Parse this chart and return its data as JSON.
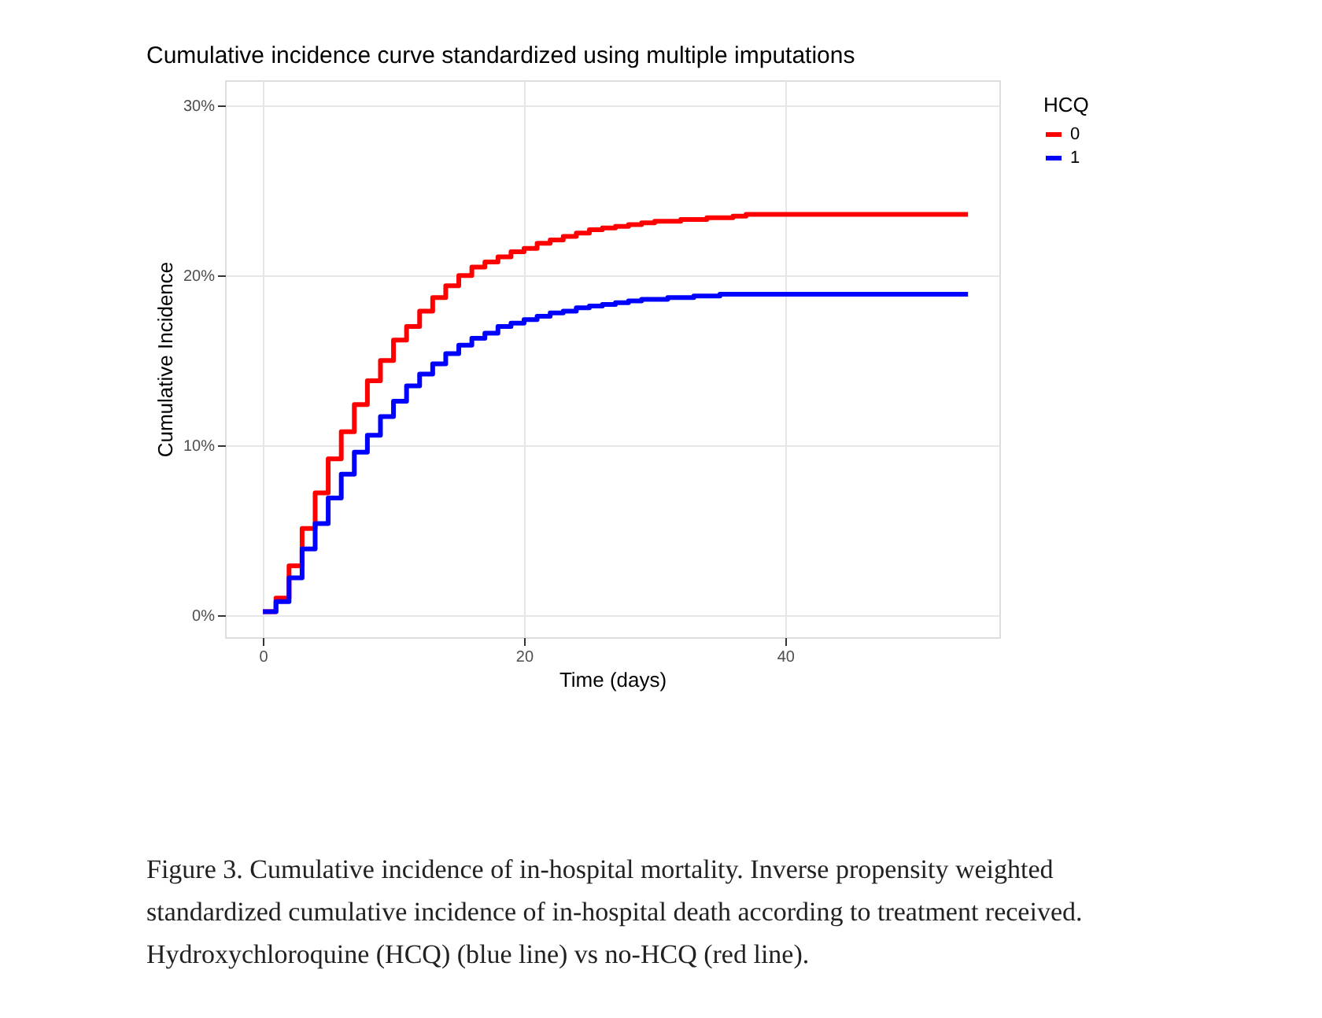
{
  "chart_data": {
    "type": "step",
    "title": "Cumulative incidence curve standardized using multiple imputations",
    "xlabel": "Time (days)",
    "ylabel": "Cumulative Incidence",
    "legend_title": "HCQ",
    "xlim": [
      -2.9,
      56.4
    ],
    "xticks": [
      0,
      20,
      40
    ],
    "ylim": [
      -1.3,
      31.5
    ],
    "yticks": [
      {
        "value": 0,
        "label": "0%"
      },
      {
        "value": 10,
        "label": "10%"
      },
      {
        "value": 20,
        "label": "20%"
      },
      {
        "value": 30,
        "label": "30%"
      }
    ],
    "grid": true,
    "legend": "right",
    "line_style": "solid",
    "marker": "none",
    "series": [
      {
        "name": "0",
        "color": "#ff0000",
        "x": [
          0,
          1,
          2,
          3,
          4,
          5,
          6,
          7,
          8,
          9,
          10,
          11,
          12,
          13,
          14,
          15,
          16,
          17,
          18,
          19,
          20,
          21,
          22,
          23,
          24,
          25,
          26,
          27,
          28,
          29,
          30,
          31,
          32,
          33,
          34,
          35,
          36,
          37,
          54
        ],
        "values": [
          0.2,
          1.0,
          2.9,
          5.1,
          7.2,
          9.2,
          10.8,
          12.4,
          13.8,
          15.0,
          16.2,
          17.0,
          17.9,
          18.7,
          19.4,
          20.0,
          20.5,
          20.8,
          21.1,
          21.4,
          21.6,
          21.9,
          22.1,
          22.3,
          22.5,
          22.7,
          22.8,
          22.9,
          23.0,
          23.1,
          23.2,
          23.2,
          23.3,
          23.3,
          23.4,
          23.4,
          23.5,
          23.6,
          23.6
        ]
      },
      {
        "name": "1",
        "color": "#0000ff",
        "x": [
          0,
          1,
          2,
          3,
          4,
          5,
          6,
          7,
          8,
          9,
          10,
          11,
          12,
          13,
          14,
          15,
          16,
          17,
          18,
          19,
          20,
          21,
          22,
          23,
          24,
          25,
          26,
          27,
          28,
          29,
          30,
          31,
          32,
          33,
          34,
          35,
          54
        ],
        "values": [
          0.2,
          0.8,
          2.2,
          3.9,
          5.4,
          6.9,
          8.3,
          9.6,
          10.6,
          11.7,
          12.6,
          13.5,
          14.2,
          14.8,
          15.4,
          15.9,
          16.3,
          16.6,
          17.0,
          17.2,
          17.4,
          17.6,
          17.8,
          17.9,
          18.1,
          18.2,
          18.3,
          18.4,
          18.5,
          18.6,
          18.6,
          18.7,
          18.7,
          18.8,
          18.8,
          18.9,
          18.9
        ]
      }
    ],
    "annotations": [
      "Figure 3. Cumulative incidence of in-hospital mortality. Inverse propensity weighted standardized cumulative incidence of in-hospital death according to treatment received. Hydroxychloroquine (HCQ) (blue line) vs no-HCQ (red line)."
    ]
  }
}
